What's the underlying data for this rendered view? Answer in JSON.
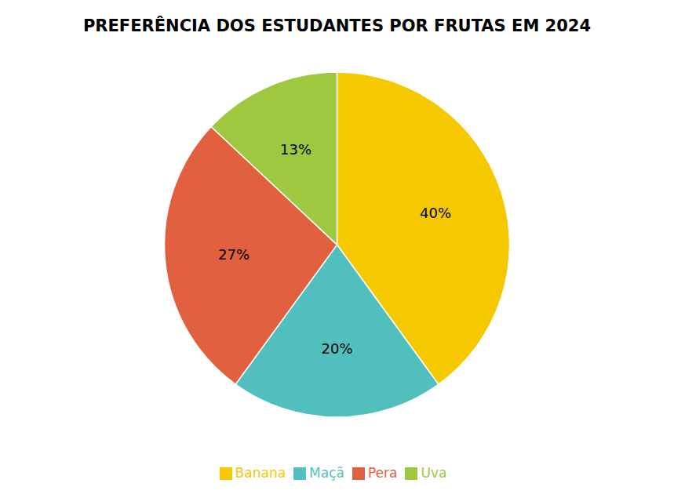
{
  "chart_data": {
    "type": "pie",
    "title": "PREFERÊNCIA DOS ESTUDANTES POR FRUTAS EM 2024",
    "categories": [
      "Banana",
      "Maçã",
      "Pera",
      "Uva"
    ],
    "values": [
      40,
      20,
      27,
      13
    ],
    "value_labels": [
      "40%",
      "20%",
      "27%",
      "13%"
    ],
    "colors": [
      "#F5C800",
      "#52BFBF",
      "#E06040",
      "#9DC840"
    ],
    "data_labels": true,
    "legend": "bottom"
  }
}
